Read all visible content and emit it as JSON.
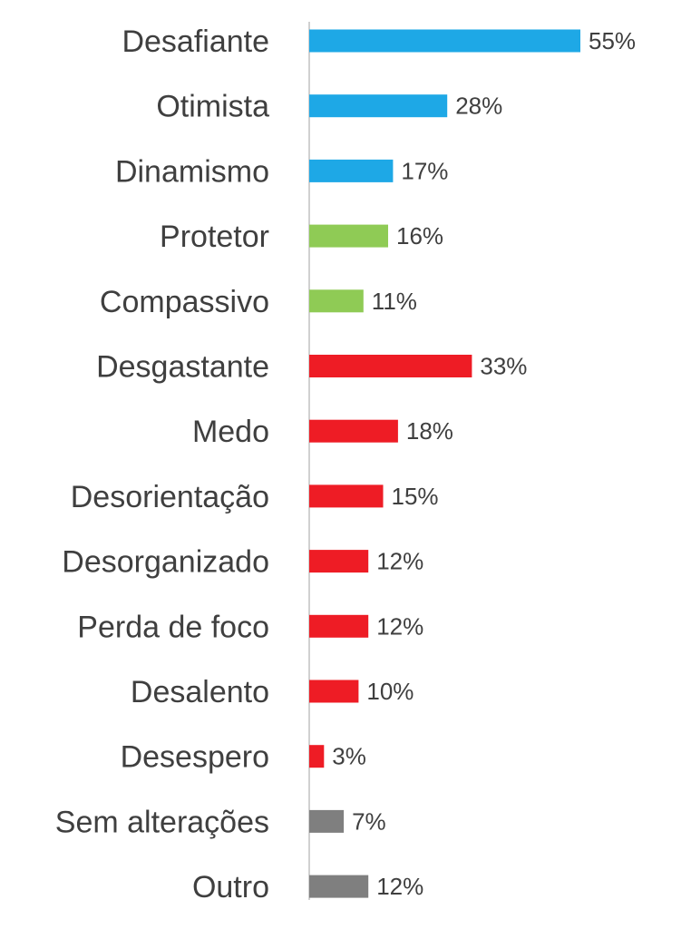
{
  "chart_data": {
    "type": "bar",
    "orientation": "horizontal",
    "title": "",
    "xlabel": "",
    "ylabel": "",
    "xlim": [
      0,
      55
    ],
    "grid": false,
    "legend": "none",
    "value_suffix": "%",
    "categories": [
      "Desafiante",
      "Otimista",
      "Dinamismo",
      "Protetor",
      "Compassivo",
      "Desgastante",
      "Medo",
      "Desorientação",
      "Desorganizado",
      "Perda de foco",
      "Desalento",
      "Desespero",
      "Sem alterações",
      "Outro"
    ],
    "values": [
      55,
      28,
      17,
      16,
      11,
      33,
      18,
      15,
      12,
      12,
      10,
      3,
      7,
      12
    ],
    "value_labels": [
      "55%",
      "28%",
      "17%",
      "16%",
      "11%",
      "33%",
      "18%",
      "15%",
      "12%",
      "12%",
      "10%",
      "3%",
      "7%",
      "12%"
    ],
    "bar_colors": [
      "#1ea8e6",
      "#1ea8e6",
      "#1ea8e6",
      "#8fcb55",
      "#8fcb55",
      "#ee1c25",
      "#ee1c25",
      "#ee1c25",
      "#ee1c25",
      "#ee1c25",
      "#ee1c25",
      "#ee1c25",
      "#7f7f7f",
      "#7f7f7f"
    ],
    "axis_color": "#d0d0d0",
    "text_color": "#3f3f3f"
  }
}
